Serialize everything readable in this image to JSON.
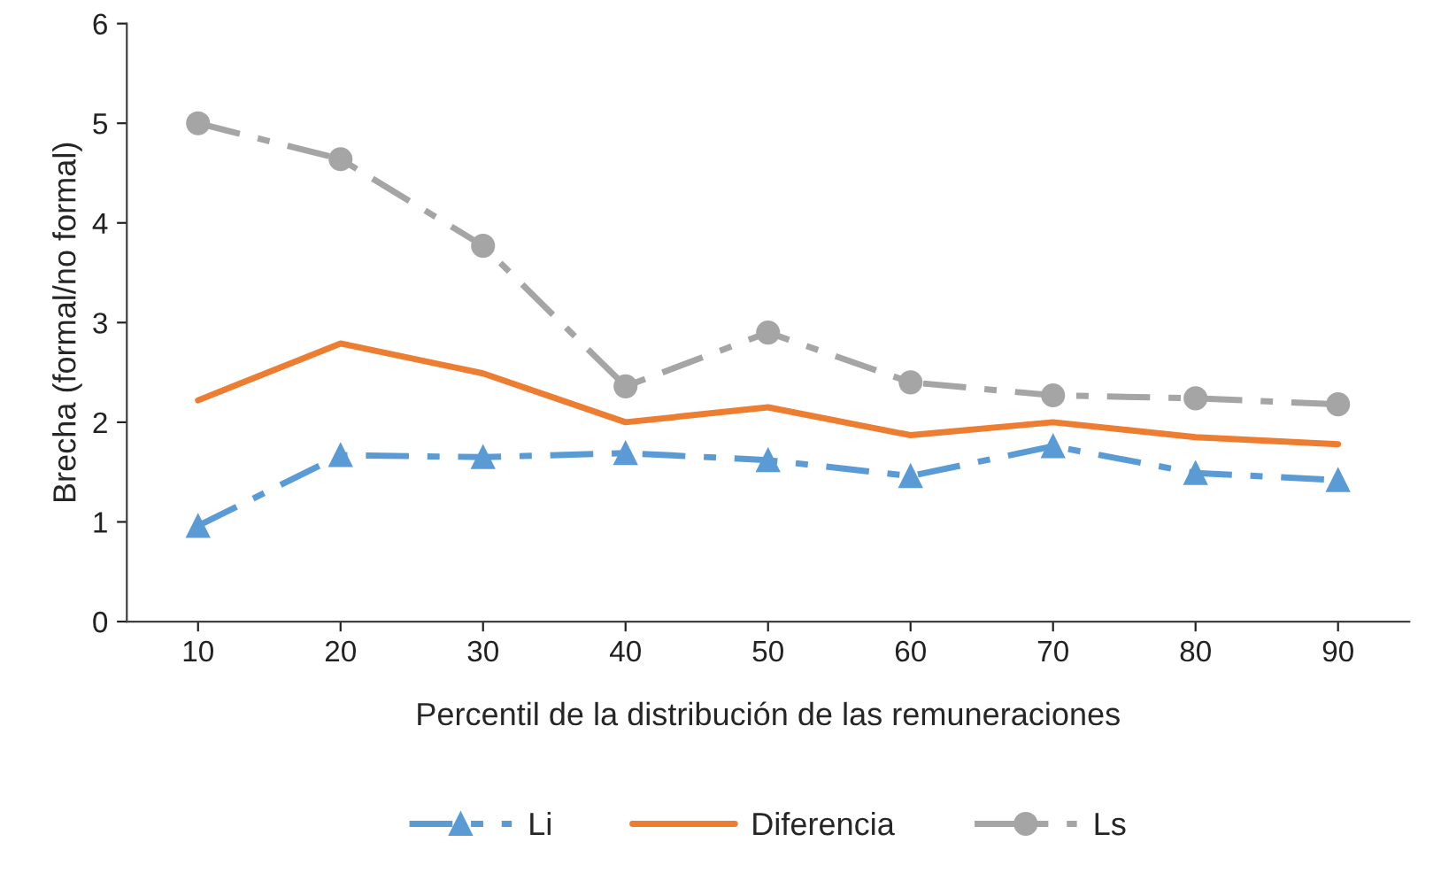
{
  "chart_data": {
    "type": "line",
    "xlabel": "Percentil de la distribución de las remuneraciones",
    "ylabel": "Brecha (formal/no formal)",
    "categories": [
      "10",
      "20",
      "30",
      "40",
      "50",
      "60",
      "70",
      "80",
      "90"
    ],
    "series": [
      {
        "name": "Li",
        "color": "#5b9bd5",
        "marker": "triangle",
        "line_style": "dashed",
        "values": [
          0.96,
          1.67,
          1.65,
          1.69,
          1.62,
          1.46,
          1.76,
          1.49,
          1.42
        ]
      },
      {
        "name": "Diferencia",
        "color": "#ed7d31",
        "marker": "none",
        "line_style": "solid",
        "values": [
          2.22,
          2.79,
          2.49,
          2.0,
          2.15,
          1.87,
          2.0,
          1.85,
          1.78
        ]
      },
      {
        "name": "Ls",
        "color": "#a5a5a5",
        "marker": "circle",
        "line_style": "dashed",
        "values": [
          5.0,
          4.64,
          3.77,
          2.36,
          2.9,
          2.4,
          2.27,
          2.24,
          2.18
        ]
      }
    ],
    "ylim": [
      0,
      6
    ],
    "yticks": [
      0,
      1,
      2,
      3,
      4,
      5,
      6
    ],
    "grid": false,
    "legend": "bottom"
  }
}
